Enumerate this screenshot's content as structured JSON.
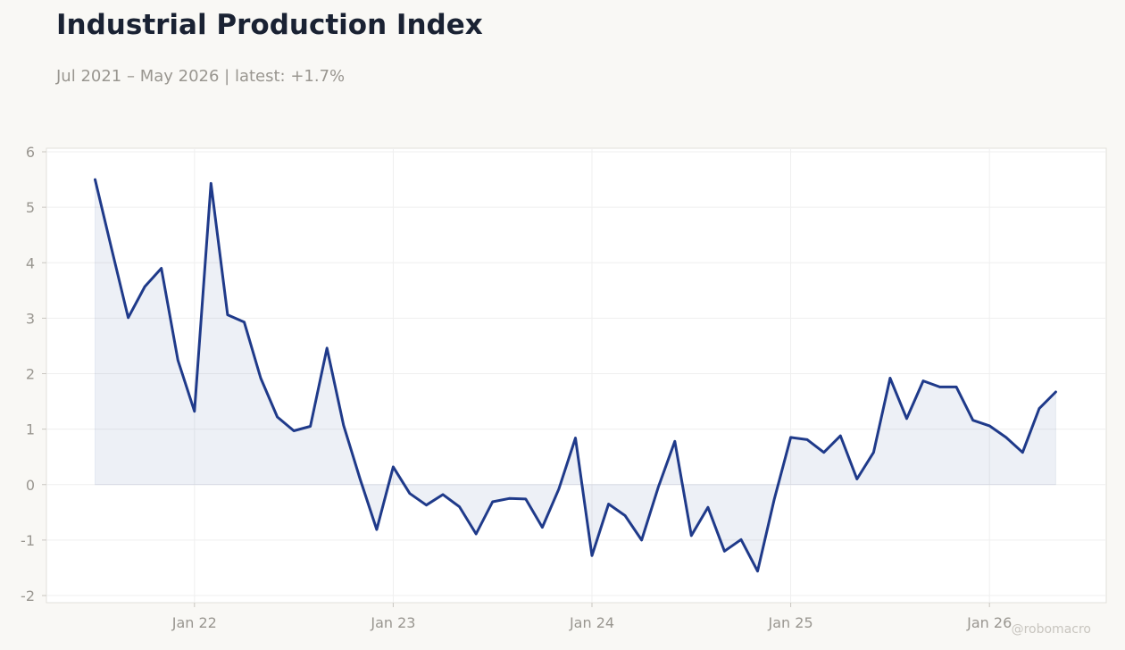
{
  "title": "Industrial Production Index",
  "subtitle": "Jul 2021 – May 2026 | latest: +1.7%",
  "watermark": "@robomacro",
  "colors": {
    "line": "#1f3a8a",
    "fill": "#1f3a8a",
    "background": "#f9f8f5",
    "plot_bg": "#ffffff"
  },
  "chart_data": {
    "type": "area",
    "title": "Industrial Production Index",
    "subtitle": "Jul 2021 – May 2026 | latest: +1.7%",
    "xlabel": "",
    "ylabel": "",
    "ylim": [
      -2,
      6
    ],
    "xlim": [
      "2021-07",
      "2026-05"
    ],
    "yticks": [
      -2,
      -1,
      0,
      1,
      2,
      3,
      4,
      5,
      6
    ],
    "ytick_labels": [
      "-2",
      "-1",
      "0",
      "1",
      "2",
      "3",
      "4",
      "5",
      "6"
    ],
    "xticks": [
      "2022-01",
      "2023-01",
      "2024-01",
      "2025-01",
      "2026-01"
    ],
    "xtick_labels": [
      "Jan 22",
      "Jan 23",
      "Jan 24",
      "Jan 25",
      "Jan 26"
    ],
    "grid": true,
    "series": [
      {
        "x": [
          "2021-07",
          "2021-08",
          "2021-09",
          "2021-10",
          "2021-11",
          "2021-12",
          "2022-01",
          "2022-02",
          "2022-03",
          "2022-04",
          "2022-05",
          "2022-06",
          "2022-07",
          "2022-08",
          "2022-09",
          "2022-10",
          "2022-11",
          "2022-12",
          "2023-01",
          "2023-02",
          "2023-03",
          "2023-04",
          "2023-05",
          "2023-06",
          "2023-07",
          "2023-08",
          "2023-09",
          "2023-10",
          "2023-11",
          "2023-12",
          "2024-01",
          "2024-02",
          "2024-03",
          "2024-04",
          "2024-05",
          "2024-06",
          "2024-07",
          "2024-08",
          "2024-09",
          "2024-10",
          "2024-11",
          "2024-12",
          "2025-01",
          "2025-02",
          "2025-03",
          "2025-04",
          "2025-05",
          "2025-06",
          "2025-07",
          "2025-08",
          "2025-09",
          "2025-10",
          "2025-11",
          "2025-12",
          "2026-01",
          "2026-02",
          "2026-03",
          "2026-04",
          "2026-05"
        ],
        "values": [
          5.5,
          4.25,
          3.01,
          3.57,
          3.9,
          2.24,
          1.32,
          5.43,
          3.06,
          2.93,
          1.92,
          1.22,
          0.97,
          1.05,
          2.46,
          1.07,
          0.1,
          -0.81,
          0.32,
          -0.16,
          -0.37,
          -0.18,
          -0.4,
          -0.89,
          -0.31,
          -0.25,
          -0.26,
          -0.77,
          -0.08,
          0.84,
          -1.28,
          -0.35,
          -0.56,
          -1.0,
          -0.05,
          0.78,
          -0.92,
          -0.41,
          -1.2,
          -0.99,
          -1.56,
          -0.27,
          0.85,
          0.81,
          0.58,
          0.88,
          0.1,
          0.58,
          1.92,
          1.19,
          1.87,
          1.76,
          1.76,
          1.16,
          1.06,
          0.85,
          0.58,
          1.37,
          1.67
        ]
      }
    ]
  }
}
